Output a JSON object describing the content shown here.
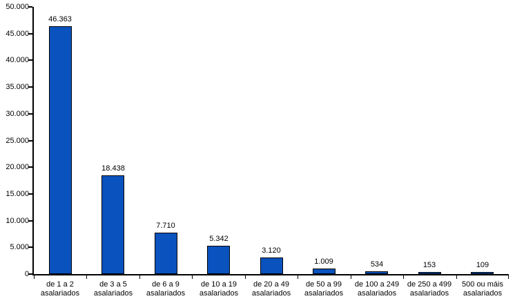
{
  "chart_data": {
    "type": "bar",
    "title": "",
    "xlabel": "",
    "ylabel": "",
    "categories": [
      "de 1 a 2",
      "de 3 a 5",
      "de 6 a 9",
      "de 10 a 19",
      "de 20 a 49",
      "de 50 a 99",
      "de 100 a 249",
      "de 250 a 499",
      "500 ou máis"
    ],
    "category_suffix": "asalariados",
    "values": [
      46363,
      18438,
      7710,
      5342,
      3120,
      1009,
      534,
      153,
      109
    ],
    "value_labels": [
      "46.363",
      "18.438",
      "7.710",
      "5.342",
      "3.120",
      "1.009",
      "534",
      "153",
      "109"
    ],
    "ylim": [
      0,
      50000
    ],
    "y_tick_step": 5000,
    "y_tick_labels": [
      "0",
      "5.000",
      "10.000",
      "15.000",
      "20.000",
      "25.000",
      "30.000",
      "35.000",
      "40.000",
      "45.000",
      "50.000"
    ],
    "grid": false,
    "legend": "none",
    "colors": {
      "bar_fill": "#0a52bd",
      "bar_border": "#000000",
      "axis": "#000000",
      "text": "#000000",
      "background": "#ffffff"
    }
  }
}
